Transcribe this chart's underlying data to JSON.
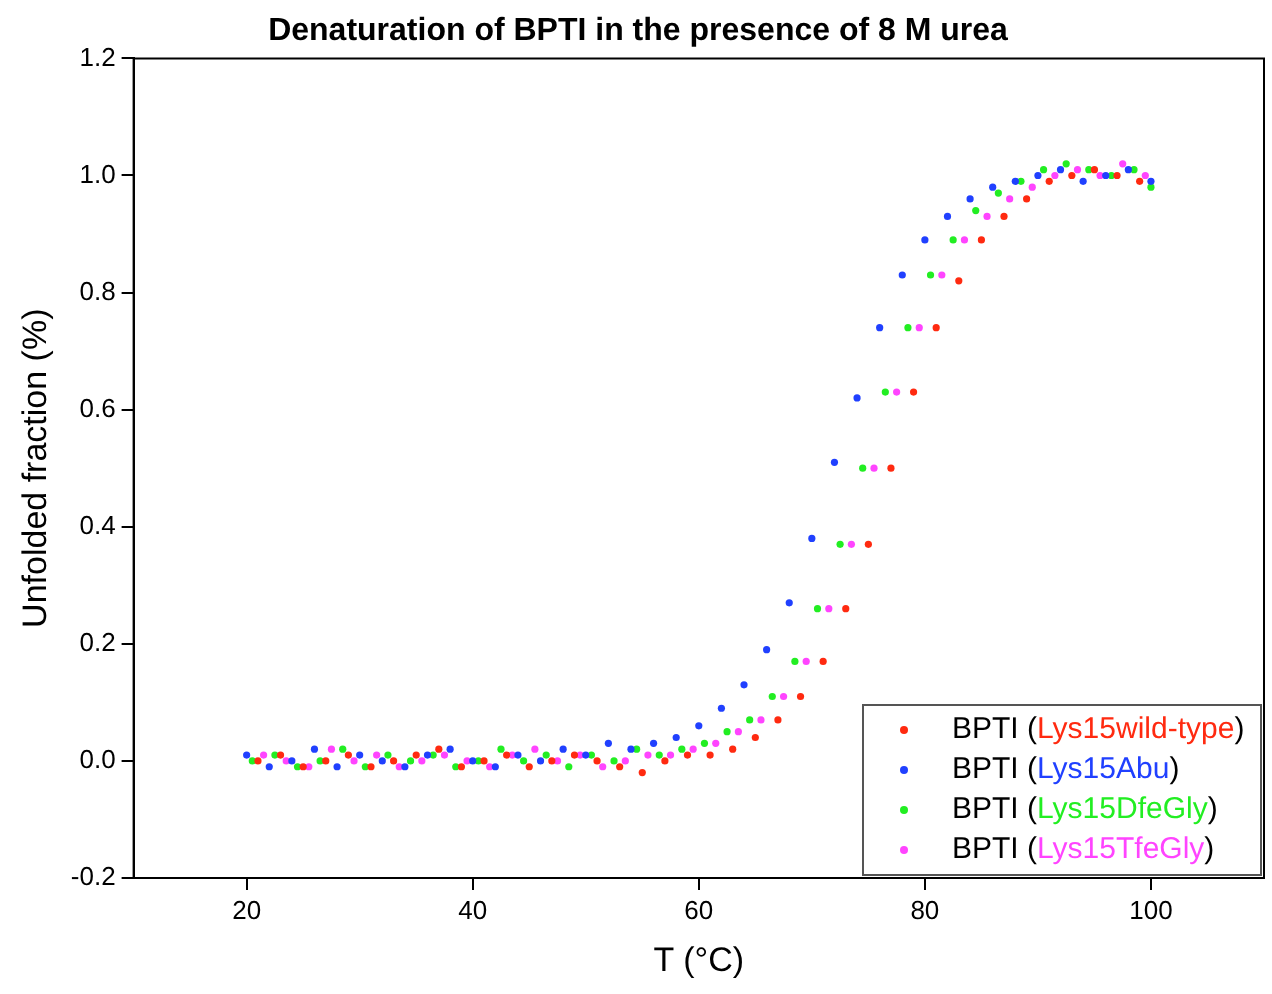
{
  "chart_data": {
    "type": "scatter",
    "title": "Denaturation of BPTI in the presence of 8 M urea",
    "xlabel": "T (°C)",
    "ylabel": "Unfolded fraction (%)",
    "xlim": [
      10,
      110
    ],
    "xticks": [
      20,
      40,
      60,
      80,
      100
    ],
    "ylim": [
      -0.2,
      1.2
    ],
    "yticks": [
      -0.2,
      {
        "value": 0,
        "label": "0.0"
      },
      0.2,
      0.4,
      0.6,
      0.8,
      {
        "value": 1,
        "label": "1.0"
      },
      1.2
    ],
    "grid": false,
    "legend": "bottom right",
    "marker": "circle",
    "series": [
      {
        "name": "BPTI (Lys15wild-type)",
        "color": "#ff2a10",
        "x": [
          21,
          23,
          25,
          27,
          29,
          31,
          33,
          35,
          37,
          39,
          41,
          43,
          45,
          47,
          49,
          51,
          53,
          55,
          57,
          59,
          61,
          63,
          65,
          67,
          69,
          71,
          73,
          75,
          77,
          79,
          81,
          83,
          85,
          87,
          89,
          91,
          93,
          95,
          97,
          99
        ],
        "values": [
          0.0,
          0.01,
          -0.01,
          0.0,
          0.01,
          -0.01,
          0.0,
          0.01,
          0.02,
          -0.01,
          0.0,
          0.01,
          -0.01,
          0.0,
          0.01,
          0.0,
          -0.01,
          -0.02,
          0.0,
          0.01,
          0.01,
          0.02,
          0.04,
          0.07,
          0.11,
          0.17,
          0.26,
          0.37,
          0.5,
          0.63,
          0.74,
          0.82,
          0.89,
          0.93,
          0.96,
          0.99,
          1.0,
          1.01,
          1.0,
          0.99
        ]
      },
      {
        "name": "BPTI (Lys15Abu)",
        "color": "#2040ff",
        "x": [
          20,
          22,
          24,
          26,
          28,
          30,
          32,
          34,
          36,
          38,
          40,
          42,
          44,
          46,
          48,
          50,
          52,
          54,
          56,
          58,
          60,
          62,
          64,
          66,
          68,
          70,
          72,
          74,
          76,
          78,
          80,
          82,
          84,
          86,
          88,
          90,
          92,
          94,
          96,
          98,
          100
        ],
        "values": [
          0.01,
          -0.01,
          0.0,
          0.02,
          -0.01,
          0.01,
          0.0,
          -0.01,
          0.01,
          0.02,
          0.0,
          -0.01,
          0.01,
          0.0,
          0.02,
          0.01,
          0.03,
          0.02,
          0.03,
          0.04,
          0.06,
          0.09,
          0.13,
          0.19,
          0.27,
          0.38,
          0.51,
          0.62,
          0.74,
          0.83,
          0.89,
          0.93,
          0.96,
          0.98,
          0.99,
          1.0,
          1.01,
          0.99,
          1.0,
          1.01,
          0.99
        ]
      },
      {
        "name": "BPTI (Lys15DfeGly)",
        "color": "#22ee22",
        "x": [
          20.5,
          22.5,
          24.5,
          26.5,
          28.5,
          30.5,
          32.5,
          34.5,
          36.5,
          38.5,
          40.5,
          42.5,
          44.5,
          46.5,
          48.5,
          50.5,
          52.5,
          54.5,
          56.5,
          58.5,
          60.5,
          62.5,
          64.5,
          66.5,
          68.5,
          70.5,
          72.5,
          74.5,
          76.5,
          78.5,
          80.5,
          82.5,
          84.5,
          86.5,
          88.5,
          90.5,
          92.5,
          94.5,
          96.5,
          98.5,
          100
        ],
        "values": [
          0.0,
          0.01,
          -0.01,
          0.0,
          0.02,
          -0.01,
          0.01,
          0.0,
          0.01,
          -0.01,
          0.0,
          0.02,
          0.0,
          0.01,
          -0.01,
          0.01,
          0.0,
          0.02,
          0.01,
          0.02,
          0.03,
          0.05,
          0.07,
          0.11,
          0.17,
          0.26,
          0.37,
          0.5,
          0.63,
          0.74,
          0.83,
          0.89,
          0.94,
          0.97,
          0.99,
          1.01,
          1.02,
          1.01,
          1.0,
          1.01,
          0.98
        ]
      },
      {
        "name": "BPTI (Lys15TfeGly)",
        "color": "#ff44ff",
        "x": [
          21.5,
          23.5,
          25.5,
          27.5,
          29.5,
          31.5,
          33.5,
          35.5,
          37.5,
          39.5,
          41.5,
          43.5,
          45.5,
          47.5,
          49.5,
          51.5,
          53.5,
          55.5,
          57.5,
          59.5,
          61.5,
          63.5,
          65.5,
          67.5,
          69.5,
          71.5,
          73.5,
          75.5,
          77.5,
          79.5,
          81.5,
          83.5,
          85.5,
          87.5,
          89.5,
          91.5,
          93.5,
          95.5,
          97.5,
          99.5
        ],
        "values": [
          0.01,
          0.0,
          -0.01,
          0.02,
          0.0,
          0.01,
          -0.01,
          0.0,
          0.01,
          0.0,
          -0.01,
          0.01,
          0.02,
          0.0,
          0.01,
          -0.01,
          0.0,
          0.01,
          0.01,
          0.02,
          0.03,
          0.05,
          0.07,
          0.11,
          0.17,
          0.26,
          0.37,
          0.5,
          0.63,
          0.74,
          0.83,
          0.89,
          0.93,
          0.96,
          0.98,
          1.0,
          1.01,
          1.0,
          1.02,
          1.0
        ]
      }
    ]
  }
}
